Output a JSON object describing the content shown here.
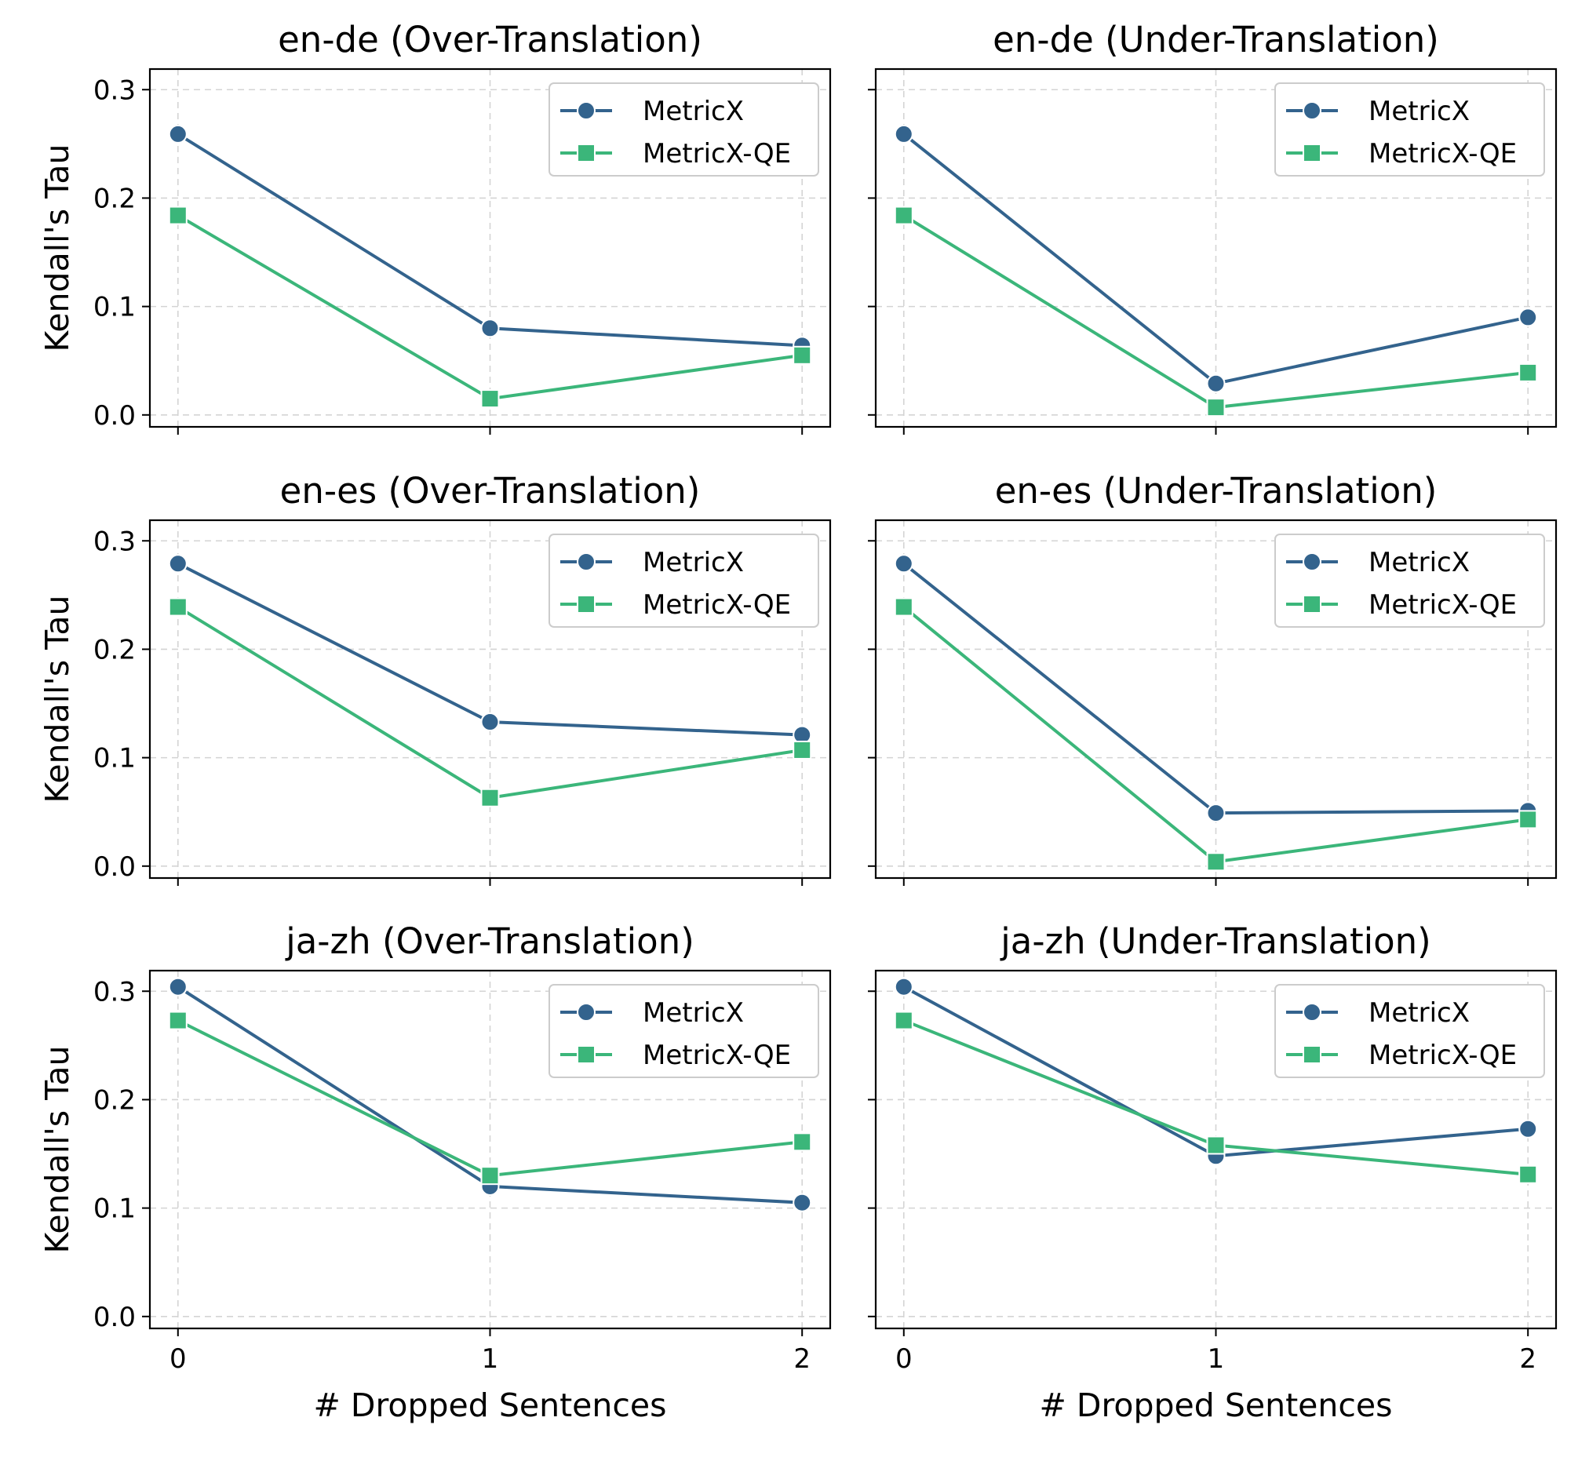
{
  "chart_data": [
    {
      "type": "line",
      "title": "en-de (Over-Translation)",
      "xlabel": "",
      "ylabel": "Kendall's Tau",
      "x": [
        0,
        1,
        2
      ],
      "x_ticks": [
        "0",
        "1",
        "2"
      ],
      "y_ticks": [
        "0.0",
        "0.1",
        "0.2",
        "0.3"
      ],
      "xlim": [
        -0.09,
        2.09
      ],
      "ylim": [
        -0.011,
        0.319
      ],
      "grid": true,
      "legend": "top-right",
      "series": [
        {
          "name": "MetricX",
          "values": [
            0.259,
            0.08,
            0.064
          ],
          "color": "#33638d",
          "marker": "circle"
        },
        {
          "name": "MetricX-QE",
          "values": [
            0.184,
            0.015,
            0.055
          ],
          "color": "#3bb67a",
          "marker": "square"
        }
      ]
    },
    {
      "type": "line",
      "title": "en-de (Under-Translation)",
      "xlabel": "",
      "ylabel": "",
      "x": [
        0,
        1,
        2
      ],
      "x_ticks": [
        "0",
        "1",
        "2"
      ],
      "y_ticks": [
        "0.0",
        "0.1",
        "0.2",
        "0.3"
      ],
      "xlim": [
        -0.09,
        2.09
      ],
      "ylim": [
        -0.011,
        0.319
      ],
      "grid": true,
      "legend": "top-right",
      "series": [
        {
          "name": "MetricX",
          "values": [
            0.259,
            0.029,
            0.09
          ],
          "color": "#33638d",
          "marker": "circle"
        },
        {
          "name": "MetricX-QE",
          "values": [
            0.184,
            0.007,
            0.039
          ],
          "color": "#3bb67a",
          "marker": "square"
        }
      ]
    },
    {
      "type": "line",
      "title": "en-es (Over-Translation)",
      "xlabel": "",
      "ylabel": "Kendall's Tau",
      "x": [
        0,
        1,
        2
      ],
      "x_ticks": [
        "0",
        "1",
        "2"
      ],
      "y_ticks": [
        "0.0",
        "0.1",
        "0.2",
        "0.3"
      ],
      "xlim": [
        -0.09,
        2.09
      ],
      "ylim": [
        -0.011,
        0.319
      ],
      "grid": true,
      "legend": "top-right",
      "series": [
        {
          "name": "MetricX",
          "values": [
            0.279,
            0.133,
            0.121
          ],
          "color": "#33638d",
          "marker": "circle"
        },
        {
          "name": "MetricX-QE",
          "values": [
            0.239,
            0.063,
            0.107
          ],
          "color": "#3bb67a",
          "marker": "square"
        }
      ]
    },
    {
      "type": "line",
      "title": "en-es (Under-Translation)",
      "xlabel": "",
      "ylabel": "",
      "x": [
        0,
        1,
        2
      ],
      "x_ticks": [
        "0",
        "1",
        "2"
      ],
      "y_ticks": [
        "0.0",
        "0.1",
        "0.2",
        "0.3"
      ],
      "xlim": [
        -0.09,
        2.09
      ],
      "ylim": [
        -0.011,
        0.319
      ],
      "grid": true,
      "legend": "top-right",
      "series": [
        {
          "name": "MetricX",
          "values": [
            0.279,
            0.049,
            0.051
          ],
          "color": "#33638d",
          "marker": "circle"
        },
        {
          "name": "MetricX-QE",
          "values": [
            0.239,
            0.004,
            0.043
          ],
          "color": "#3bb67a",
          "marker": "square"
        }
      ]
    },
    {
      "type": "line",
      "title": "ja-zh (Over-Translation)",
      "xlabel": "# Dropped Sentences",
      "ylabel": "Kendall's Tau",
      "x": [
        0,
        1,
        2
      ],
      "x_ticks": [
        "0",
        "1",
        "2"
      ],
      "y_ticks": [
        "0.0",
        "0.1",
        "0.2",
        "0.3"
      ],
      "xlim": [
        -0.09,
        2.09
      ],
      "ylim": [
        -0.011,
        0.319
      ],
      "grid": true,
      "legend": "top-right",
      "series": [
        {
          "name": "MetricX",
          "values": [
            0.304,
            0.12,
            0.105
          ],
          "color": "#33638d",
          "marker": "circle"
        },
        {
          "name": "MetricX-QE",
          "values": [
            0.273,
            0.13,
            0.161
          ],
          "color": "#3bb67a",
          "marker": "square"
        }
      ]
    },
    {
      "type": "line",
      "title": "ja-zh (Under-Translation)",
      "xlabel": "# Dropped Sentences",
      "ylabel": "",
      "x": [
        0,
        1,
        2
      ],
      "x_ticks": [
        "0",
        "1",
        "2"
      ],
      "y_ticks": [
        "0.0",
        "0.1",
        "0.2",
        "0.3"
      ],
      "xlim": [
        -0.09,
        2.09
      ],
      "ylim": [
        -0.011,
        0.319
      ],
      "grid": true,
      "legend": "top-right",
      "series": [
        {
          "name": "MetricX",
          "values": [
            0.304,
            0.148,
            0.173
          ],
          "color": "#33638d",
          "marker": "circle"
        },
        {
          "name": "MetricX-QE",
          "values": [
            0.273,
            0.158,
            0.131
          ],
          "color": "#3bb67a",
          "marker": "square"
        }
      ]
    }
  ]
}
